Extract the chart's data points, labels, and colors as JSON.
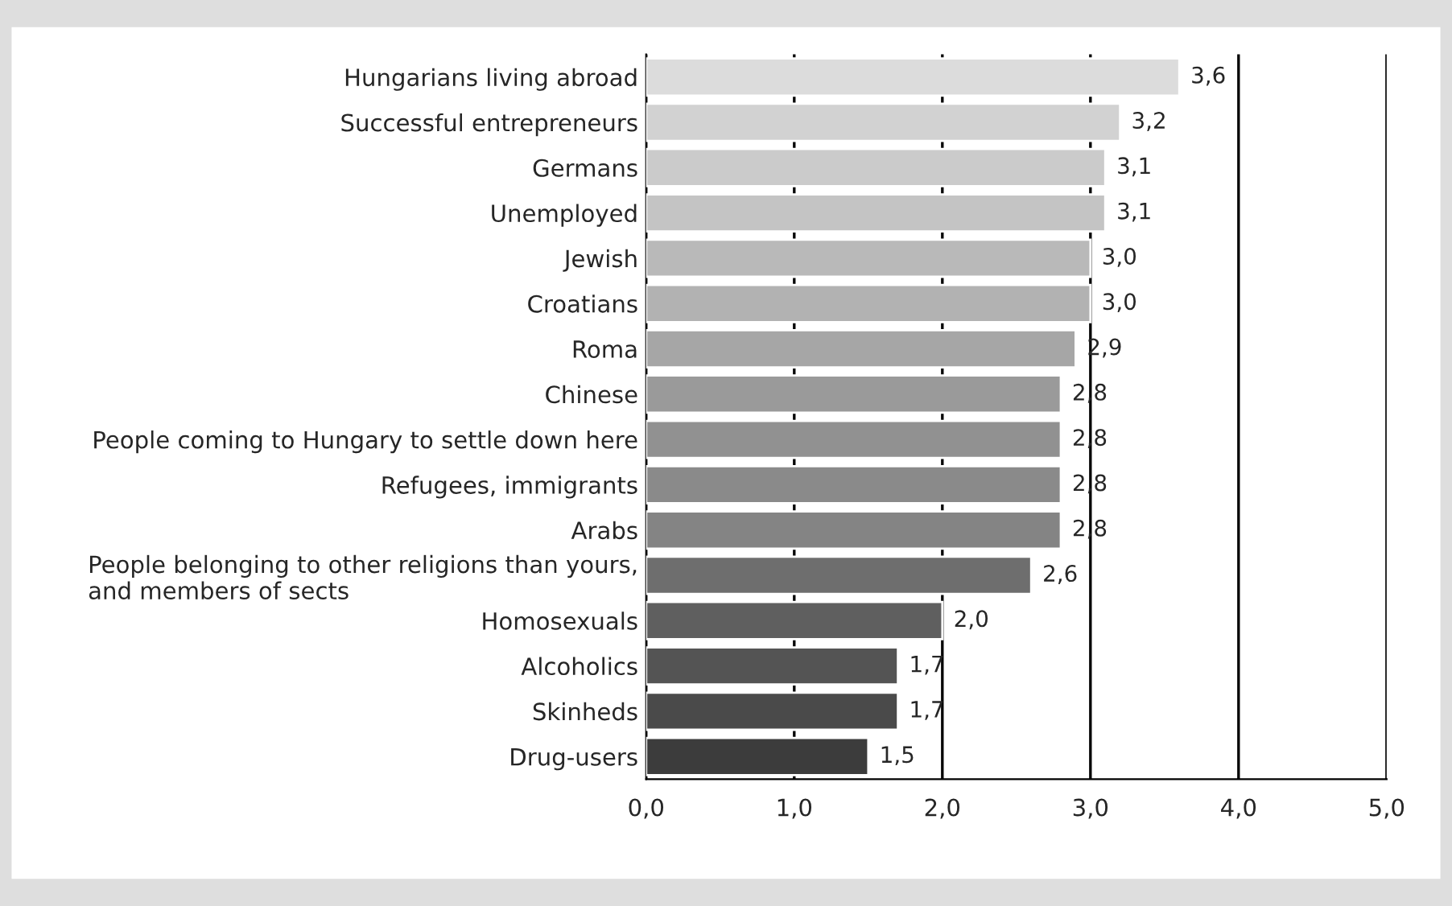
{
  "chart_data": {
    "type": "bar",
    "orientation": "horizontal",
    "categories": [
      "Hungarians living abroad",
      "Successful entrepreneurs",
      "Germans",
      "Unemployed",
      "Jewish",
      "Croatians",
      "Roma",
      "Chinese",
      "People coming to Hungary to settle down here",
      "Refugees, immigrants",
      "Arabs",
      "People belonging to other religions than yours,\nand members of sects",
      "Homosexuals",
      "Alcoholics",
      "Skinheds",
      "Drug-users"
    ],
    "values": [
      3.6,
      3.2,
      3.1,
      3.1,
      3.0,
      3.0,
      2.9,
      2.8,
      2.8,
      2.8,
      2.8,
      2.6,
      2.0,
      1.7,
      1.7,
      1.5
    ],
    "value_labels": [
      "3,6",
      "3,2",
      "3,1",
      "3,1",
      "3,0",
      "3,0",
      "2,9",
      "2,8",
      "2,8",
      "2,8",
      "2,8",
      "2,6",
      "2,0",
      "1,7",
      "1,7",
      "1,5"
    ],
    "colors": [
      "#dcdcdc",
      "#d2d2d2",
      "#cbcbcb",
      "#c4c4c4",
      "#b9b9b9",
      "#b2b2b2",
      "#a6a6a6",
      "#9a9a9a",
      "#919191",
      "#8a8a8a",
      "#848484",
      "#6e6e6e",
      "#5f5f5f",
      "#545454",
      "#4a4a4a",
      "#3c3c3c"
    ],
    "xlim": [
      0,
      5
    ],
    "xticks": [
      {
        "value": 0,
        "label": "0,0"
      },
      {
        "value": 1,
        "label": "1,0"
      },
      {
        "value": 2,
        "label": "2,0"
      },
      {
        "value": 3,
        "label": "3,0"
      },
      {
        "value": 4,
        "label": "4,0"
      },
      {
        "value": 5,
        "label": "5,0"
      }
    ],
    "grid": "x"
  }
}
